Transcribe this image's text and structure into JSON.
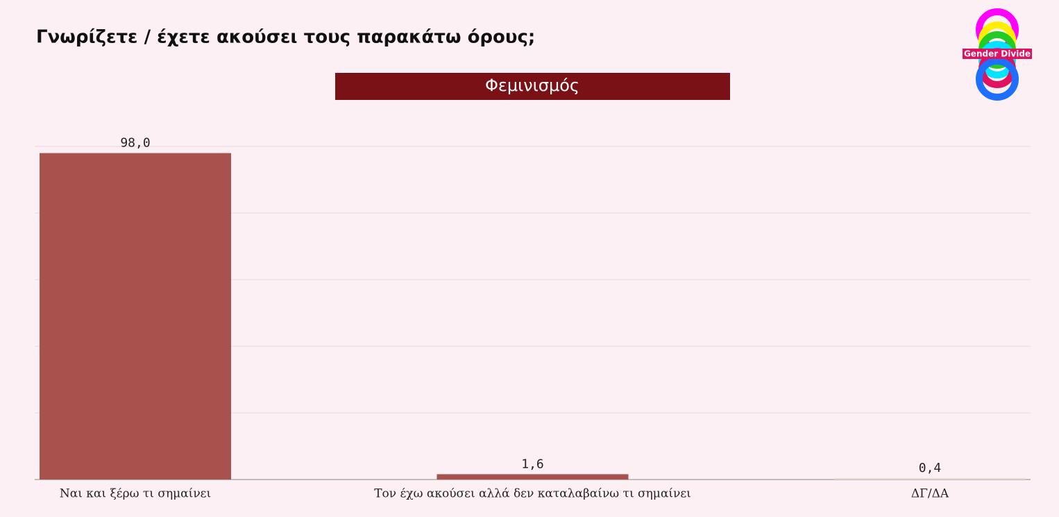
{
  "chart_data": {
    "type": "bar",
    "title": "Γνωρίζετε / έχετε ακούσει τους παρακάτω όρους;",
    "subtitle": "Φεμινισμός",
    "logo": "Gender Divide",
    "categories": [
      "Ναι και ξέρω τι σημαίνει",
      "Τον έχω ακούσει αλλά δεν καταλαβαίνω τι σημαίνει",
      "ΔΓ/ΔΑ"
    ],
    "values": [
      98.0,
      1.6,
      0.4
    ],
    "value_labels": [
      "98,0",
      "1,6",
      "0,4"
    ],
    "colors": [
      "#a8514d",
      "#a8514d",
      "#e6d9c9"
    ],
    "ylim": [
      0,
      100
    ],
    "yticks": [
      0,
      20,
      40,
      60,
      80,
      100
    ],
    "grid": true
  }
}
